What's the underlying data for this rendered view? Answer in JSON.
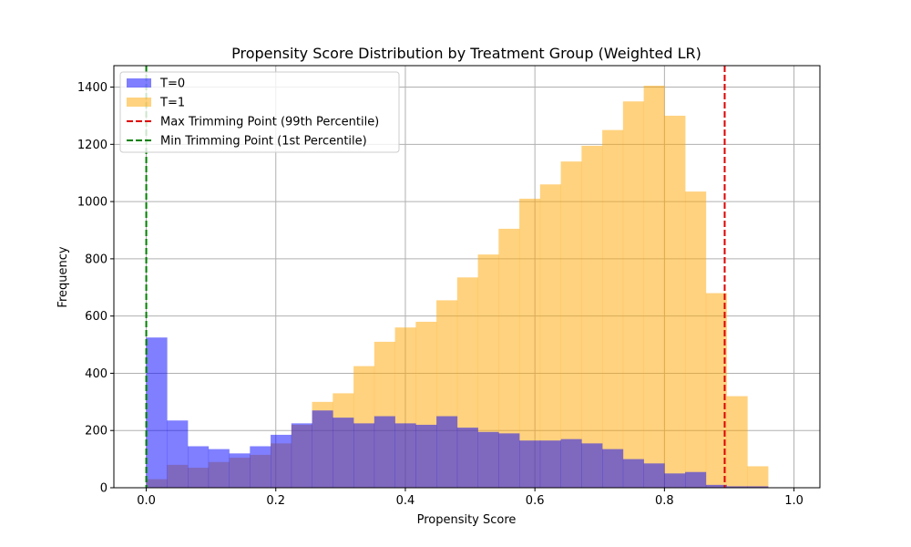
{
  "chart_data": {
    "type": "bar",
    "title": "Propensity Score Distribution by Treatment Group (Weighted LR)",
    "xlabel": "Propensity Score",
    "ylabel": "Frequency",
    "xlim": [
      -0.05,
      1.04
    ],
    "ylim": [
      0,
      1475
    ],
    "xticks": [
      "0.0",
      "0.2",
      "0.4",
      "0.6",
      "0.8",
      "1.0"
    ],
    "yticks": [
      "0",
      "200",
      "400",
      "600",
      "800",
      "1000",
      "1200",
      "1400"
    ],
    "grid": true,
    "legend_position": "top-left",
    "bin_width": 0.032,
    "series": [
      {
        "name": "T=1",
        "color": "#FFA500",
        "alpha": 0.5,
        "x_start": 0.0,
        "counts": [
          30,
          80,
          70,
          90,
          105,
          115,
          155,
          220,
          300,
          330,
          425,
          510,
          560,
          580,
          655,
          735,
          815,
          905,
          1010,
          1060,
          1140,
          1195,
          1250,
          1350,
          1405,
          1300,
          1035,
          680,
          320,
          75
        ]
      },
      {
        "name": "T=0",
        "color": "#0000FF",
        "alpha": 0.5,
        "x_start": 0.0,
        "counts": [
          525,
          235,
          145,
          135,
          120,
          145,
          185,
          225,
          270,
          245,
          225,
          250,
          225,
          220,
          250,
          210,
          195,
          190,
          165,
          165,
          170,
          155,
          135,
          100,
          85,
          50,
          55,
          10,
          5,
          5
        ]
      }
    ],
    "reference_lines": [
      {
        "name": "Max Trimming Point (99th Percentile)",
        "x": 0.893,
        "color": "#DD0000",
        "style": "dashed"
      },
      {
        "name": "Min Trimming Point (1st Percentile)",
        "x": 0.0,
        "color": "#008000",
        "style": "dashed"
      }
    ],
    "legend_order": [
      "T=0",
      "T=1",
      "Max Trimming Point (99th Percentile)",
      "Min Trimming Point (1st Percentile)"
    ]
  }
}
